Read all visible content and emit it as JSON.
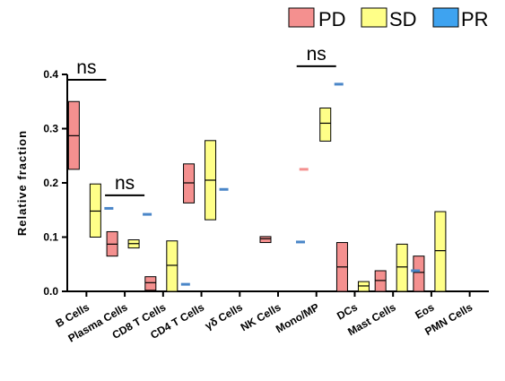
{
  "chart_data": {
    "type": "floating-bar",
    "ylabel": "Relative fraction",
    "ylim": [
      0,
      0.4
    ],
    "yticks": [
      "0.0",
      "0.1",
      "0.2",
      "0.3",
      "0.4"
    ],
    "categories": [
      "B Cells",
      "Plasma Cells",
      "CD8 T Cells",
      "CD4 T Cells",
      "γδ Cells",
      "NK Cells",
      "Mono/MP",
      "DCs",
      "Mast Cells",
      "Eos",
      "PMN Cells"
    ],
    "series": [
      {
        "name": "PD",
        "color": "#f4908f",
        "values": [
          {
            "min": 0.225,
            "max": 0.35,
            "median": 0.287
          },
          {
            "min": 0.065,
            "max": 0.11,
            "median": 0.087
          },
          {
            "min": 0.002,
            "max": 0.027,
            "median": 0.016
          },
          {
            "min": 0.163,
            "max": 0.235,
            "median": 0.2
          },
          null,
          {
            "min": 0.09,
            "max": 0.101,
            "median": 0.097
          },
          {
            "min": 0.225,
            "max": 0.225,
            "median": 0.225
          },
          {
            "min": 0.0,
            "max": 0.09,
            "median": 0.045
          },
          {
            "min": 0.0,
            "max": 0.038,
            "median": 0.02
          },
          {
            "min": 0.0,
            "max": 0.065,
            "median": 0.035
          },
          null
        ]
      },
      {
        "name": "SD",
        "color": "#ffff88",
        "values": [
          {
            "min": 0.1,
            "max": 0.198,
            "median": 0.148
          },
          {
            "min": 0.08,
            "max": 0.095,
            "median": 0.088
          },
          {
            "min": 0.0,
            "max": 0.093,
            "median": 0.048
          },
          {
            "min": 0.132,
            "max": 0.278,
            "median": 0.205
          },
          null,
          null,
          {
            "min": 0.277,
            "max": 0.338,
            "median": 0.31
          },
          {
            "min": 0.0,
            "max": 0.018,
            "median": 0.01
          },
          {
            "min": 0.0,
            "max": 0.087,
            "median": 0.045
          },
          {
            "min": 0.0,
            "max": 0.147,
            "median": 0.075
          },
          null
        ]
      },
      {
        "name": "PR",
        "color": "#4a86c8",
        "values": [
          0.153,
          0.142,
          0.013,
          0.188,
          null,
          0.091,
          0.382,
          null,
          0.038,
          null,
          null
        ]
      }
    ],
    "annotations": [
      {
        "text": "ns",
        "category_from": 0,
        "category_to": 0,
        "y": 0.39
      },
      {
        "text": "ns",
        "category_from": 1,
        "category_to": 1,
        "y": 0.177
      },
      {
        "text": "ns",
        "category_from": 6,
        "category_to": 6,
        "y": 0.415
      }
    ],
    "legend": {
      "position": "top-right",
      "entries": [
        "PD",
        "SD",
        "PR"
      ]
    },
    "grid": false
  },
  "colors": {
    "pd": "#f4908f",
    "sd": "#ffff88",
    "pr": "#4a86c8",
    "border": "#000000"
  }
}
